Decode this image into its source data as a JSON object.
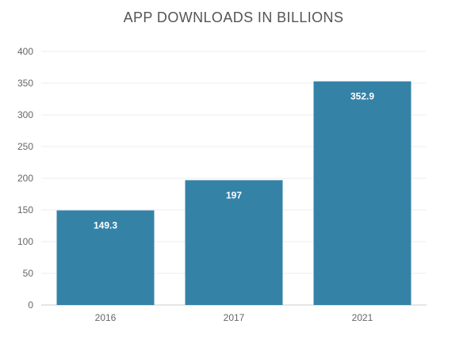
{
  "chart_data": {
    "type": "bar",
    "title": "APP DOWNLOADS IN BILLIONS",
    "xlabel": "",
    "ylabel": "",
    "categories": [
      "2016",
      "2017",
      "2021"
    ],
    "values": [
      149.3,
      197,
      352.9
    ],
    "data_labels": [
      "149.3",
      "197",
      "352.9"
    ],
    "y_ticks": [
      0,
      50,
      100,
      150,
      200,
      250,
      300,
      350,
      400
    ],
    "ylim": [
      0,
      400
    ],
    "grid": true,
    "legend": "none",
    "colors": {
      "bar": "#3582a7",
      "grid": "#eeeeee",
      "axis": "#cccccc",
      "title": "#555555",
      "tick": "#666666",
      "data_label": "#ffffff"
    }
  }
}
